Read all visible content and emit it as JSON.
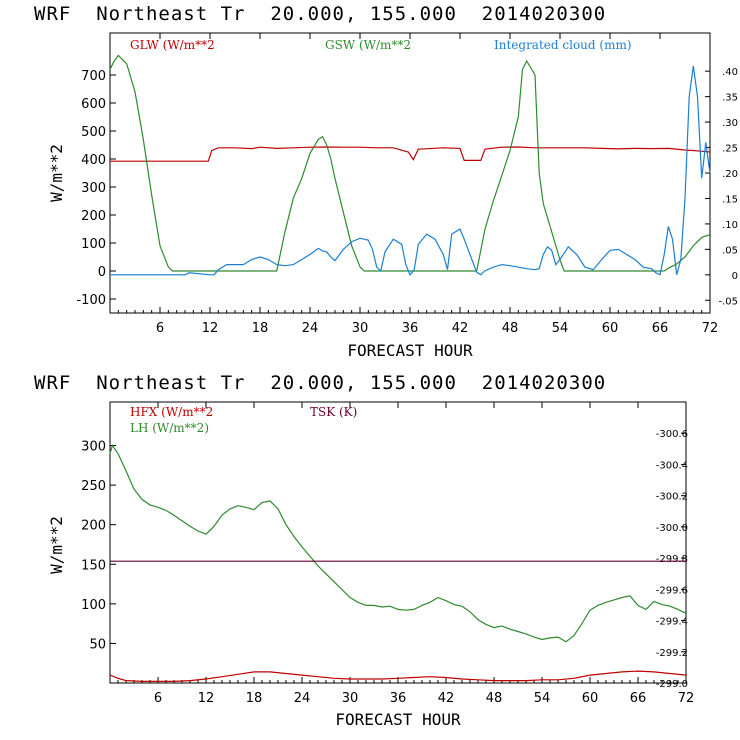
{
  "chart_data": [
    {
      "type": "line",
      "title": "WRF  Northeast Tr  20.000, 155.000  2014020300",
      "xlabel": "FORECAST HOUR",
      "ylabel": "W/m**2",
      "xlim": [
        0,
        72
      ],
      "ylim": [
        -150,
        850
      ],
      "y2lim": [
        -0.075,
        0.475
      ],
      "xticks": [
        6,
        12,
        18,
        24,
        30,
        36,
        42,
        48,
        54,
        60,
        66,
        72
      ],
      "yticks": [
        -100,
        0,
        100,
        200,
        300,
        400,
        500,
        600,
        700
      ],
      "y2ticks": [
        "-.05",
        "0",
        ".05",
        ".10",
        ".15",
        ".20",
        ".25",
        ".30",
        ".35",
        ".40"
      ],
      "legend_placement": "top",
      "series": [
        {
          "name": "GLW (W/m**2",
          "color": "#c00000",
          "axis": "left",
          "x": [
            0,
            2,
            4,
            6,
            8,
            10,
            11.8,
            12.2,
            13,
            15,
            17,
            18,
            20,
            22,
            24,
            26,
            28,
            30,
            32,
            34,
            35.8,
            36.4,
            37,
            40,
            42,
            42.5,
            44.5,
            45,
            47,
            49,
            51,
            53,
            55,
            57,
            59,
            61,
            63,
            65,
            67,
            69,
            71,
            72
          ],
          "y": [
            392,
            392,
            392,
            392,
            392,
            392,
            392,
            430,
            440,
            440,
            437,
            442,
            438,
            440,
            442,
            443,
            442,
            442,
            440,
            440,
            425,
            398,
            435,
            440,
            438,
            395,
            395,
            435,
            442,
            443,
            440,
            440,
            440,
            440,
            438,
            436,
            438,
            437,
            438,
            432,
            428,
            425
          ]
        },
        {
          "name": "GSW (W/m**2",
          "color": "#2e8b2e",
          "axis": "left",
          "x": [
            0,
            0.5,
            1,
            2,
            3,
            4,
            5,
            6,
            7,
            7.5,
            8,
            20,
            21,
            22,
            23,
            24,
            25,
            25.5,
            26,
            26.5,
            27,
            28,
            29,
            30,
            30.5,
            31,
            44,
            45,
            46,
            47,
            48,
            49,
            49.5,
            50,
            51,
            51.5,
            52,
            53,
            54,
            54.5,
            66.5,
            67,
            68,
            69,
            70,
            71,
            72
          ],
          "y": [
            720,
            750,
            770,
            740,
            640,
            470,
            270,
            90,
            15,
            0,
            0,
            0,
            140,
            260,
            330,
            420,
            470,
            480,
            450,
            400,
            330,
            210,
            90,
            15,
            0,
            0,
            0,
            150,
            250,
            340,
            430,
            550,
            720,
            750,
            700,
            350,
            240,
            140,
            40,
            0,
            0,
            10,
            25,
            50,
            90,
            120,
            130
          ]
        },
        {
          "name": "Integrated cloud (mm)",
          "color": "#1a7fd4",
          "axis": "right",
          "x": [
            0,
            9,
            9.5,
            12,
            12.5,
            13,
            14,
            16,
            17,
            18,
            19,
            20,
            21,
            22,
            23,
            24,
            25,
            25.5,
            26,
            26.5,
            27,
            28,
            29,
            30,
            31,
            31.5,
            32,
            32.5,
            33,
            34,
            35,
            35.5,
            36,
            36.5,
            37,
            38,
            39,
            40,
            40.5,
            41,
            42,
            42.5,
            44,
            44.5,
            45,
            46,
            47,
            48,
            49,
            50,
            51,
            51.5,
            52,
            52.5,
            53,
            53.5,
            54,
            55,
            56,
            57,
            58,
            59,
            60,
            61,
            62,
            63,
            64,
            65,
            65.5,
            66,
            66.5,
            67,
            67.5,
            68,
            68.5,
            69,
            69.5,
            70,
            70.5,
            71,
            71.5,
            72
          ],
          "y": [
            0,
            0,
            0.004,
            0,
            0,
            0.01,
            0.02,
            0.02,
            0.03,
            0.035,
            0.03,
            0.02,
            0.018,
            0.02,
            0.03,
            0.04,
            0.052,
            0.047,
            0.045,
            0.035,
            0.028,
            0.05,
            0.065,
            0.072,
            0.068,
            0.05,
            0.015,
            0.008,
            0.045,
            0.07,
            0.06,
            0.02,
            0,
            0.01,
            0.06,
            0.08,
            0.07,
            0.04,
            0.01,
            0.08,
            0.09,
            0.07,
            0.005,
            0,
            0.008,
            0.015,
            0.02,
            0.018,
            0.015,
            0.012,
            0.01,
            0.012,
            0.04,
            0.055,
            0.048,
            0.02,
            0.03,
            0.055,
            0.04,
            0.015,
            0.01,
            0.03,
            0.048,
            0.05,
            0.04,
            0.03,
            0.015,
            0.012,
            0.004,
            0,
            0.04,
            0.095,
            0.07,
            0,
            0.03,
            0.15,
            0.35,
            0.41,
            0.35,
            0.19,
            0.26,
            0.2
          ]
        }
      ]
    },
    {
      "type": "line",
      "title": "WRF  Northeast Tr  20.000, 155.000  2014020300",
      "xlabel": "FORECAST HOUR",
      "ylabel": "W/m**2",
      "xlim": [
        0,
        72
      ],
      "ylim": [
        0,
        355
      ],
      "y2lim": [
        299.0,
        300.8
      ],
      "xticks": [
        6,
        12,
        18,
        24,
        30,
        36,
        42,
        48,
        54,
        60,
        66,
        72
      ],
      "yticks": [
        50,
        100,
        150,
        200,
        250,
        300
      ],
      "y2ticks": [
        "299.0",
        "299.2",
        "299.4",
        "299.6",
        "299.8",
        "300.0",
        "300.2",
        "300.4",
        "300.6"
      ],
      "legend_placement": "top-left",
      "series": [
        {
          "name": "HFX (W/m**2",
          "color": "#c00000",
          "axis": "left",
          "x": [
            0,
            1,
            2,
            4,
            6,
            8,
            10,
            12,
            14,
            16,
            18,
            20,
            22,
            24,
            26,
            28,
            30,
            32,
            34,
            36,
            38,
            40,
            42,
            44,
            46,
            48,
            50,
            52,
            54,
            56,
            58,
            60,
            62,
            64,
            66,
            68,
            70,
            72
          ],
          "y": [
            10,
            6,
            3,
            2,
            2,
            2,
            3,
            5,
            8,
            11,
            14,
            14,
            12,
            10,
            8,
            6,
            5,
            5,
            5,
            6,
            7,
            8,
            7,
            5,
            4,
            3,
            3,
            3,
            4,
            4,
            6,
            10,
            12,
            14,
            15,
            14,
            12,
            10
          ]
        },
        {
          "name": "LH  (W/m**2)",
          "color": "#2e8b2e",
          "axis": "left",
          "x": [
            0,
            0.3,
            1,
            2,
            3,
            4,
            5,
            6,
            7,
            8,
            9,
            10,
            11,
            12,
            13,
            14,
            15,
            16,
            17,
            18,
            19,
            20,
            21,
            22,
            23,
            24,
            25,
            26,
            27,
            28,
            29,
            30,
            31,
            32,
            33,
            34,
            35,
            36,
            37,
            38,
            39,
            40,
            41,
            42,
            43,
            44,
            45,
            46,
            47,
            48,
            49,
            50,
            51,
            52,
            53,
            54,
            55,
            56,
            57,
            58,
            59,
            60,
            61,
            62,
            63,
            64,
            65,
            66,
            67,
            68,
            69,
            70,
            71,
            72
          ],
          "y": [
            290,
            300,
            290,
            268,
            245,
            232,
            225,
            222,
            218,
            212,
            205,
            198,
            192,
            188,
            198,
            212,
            220,
            224,
            222,
            219,
            228,
            230,
            220,
            200,
            185,
            172,
            160,
            148,
            138,
            128,
            118,
            108,
            102,
            98,
            98,
            96,
            97,
            93,
            92,
            93,
            98,
            102,
            108,
            104,
            99,
            97,
            90,
            80,
            74,
            70,
            72,
            68,
            65,
            62,
            58,
            55,
            57,
            58,
            52,
            60,
            75,
            92,
            98,
            102,
            105,
            108,
            110,
            98,
            93,
            103,
            99,
            97,
            93,
            88
          ]
        },
        {
          "name": "TSK (K)",
          "color": "#660033",
          "axis": "right",
          "x": [
            0,
            72
          ],
          "y": [
            299.78,
            299.78
          ]
        }
      ]
    }
  ]
}
